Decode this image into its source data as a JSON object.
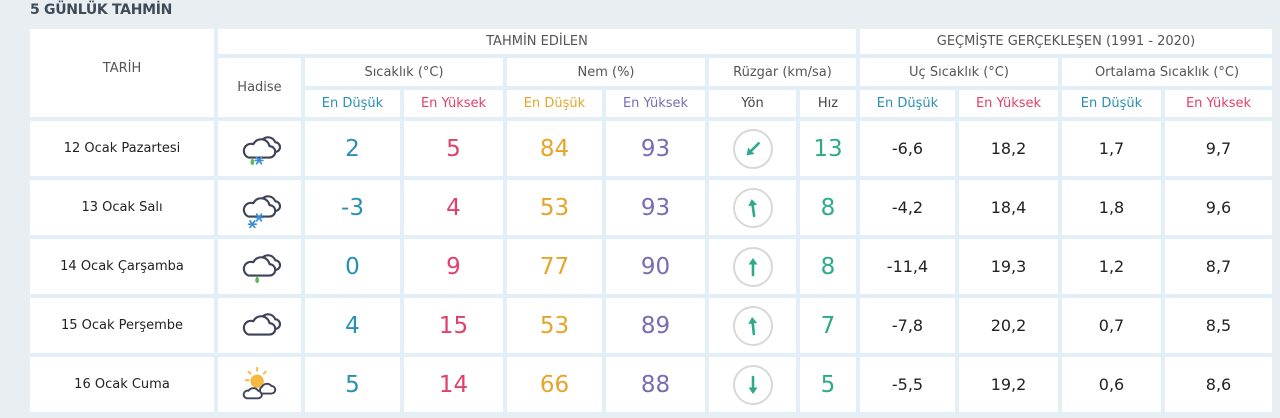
{
  "title": "5 GÜNLÜK TAHMİN",
  "headers": {
    "date": "TARİH",
    "forecast": "TAHMİN EDİLEN",
    "past": "GEÇMİŞTE GERÇEKLEŞEN (1991 - 2020)",
    "event": "Hadise",
    "temperature": "Sıcaklık (°C)",
    "humidity": "Nem (%)",
    "wind": "Rüzgar (km/sa)",
    "extreme_temp": "Uç Sıcaklık (°C)",
    "avg_temp": "Ortalama Sıcaklık (°C)",
    "low": "En Düşük",
    "high": "En Yüksek",
    "direction": "Yön",
    "speed": "Hız"
  },
  "colors": {
    "temp_low": "#2a8fb5",
    "temp_high": "#e0406a",
    "hum_low": "#e6a52a",
    "hum_high": "#7a6bb3",
    "wind": "#2fa98c"
  },
  "rows": [
    {
      "date": "12 Ocak Pazartesi",
      "icon": "cloud-rain-snow-icon",
      "temp_low": "2",
      "temp_high": "5",
      "hum_low": "84",
      "hum_high": "93",
      "wind_dir_deg": 225,
      "wind_speed": "13",
      "ext_low": "-6,6",
      "ext_high": "18,2",
      "avg_low": "1,7",
      "avg_high": "9,7"
    },
    {
      "date": "13 Ocak Salı",
      "icon": "cloud-snow-icon",
      "temp_low": "-3",
      "temp_high": "4",
      "hum_low": "53",
      "hum_high": "93",
      "wind_dir_deg": -8,
      "wind_speed": "8",
      "ext_low": "-4,2",
      "ext_high": "18,4",
      "avg_low": "1,8",
      "avg_high": "9,6"
    },
    {
      "date": "14 Ocak Çarşamba",
      "icon": "cloud-rain-icon",
      "temp_low": "0",
      "temp_high": "9",
      "hum_low": "77",
      "hum_high": "90",
      "wind_dir_deg": 0,
      "wind_speed": "8",
      "ext_low": "-11,4",
      "ext_high": "19,3",
      "avg_low": "1,2",
      "avg_high": "8,7"
    },
    {
      "date": "15 Ocak Perşembe",
      "icon": "cloudy-icon",
      "temp_low": "4",
      "temp_high": "15",
      "hum_low": "53",
      "hum_high": "89",
      "wind_dir_deg": -6,
      "wind_speed": "7",
      "ext_low": "-7,8",
      "ext_high": "20,2",
      "avg_low": "0,7",
      "avg_high": "8,5"
    },
    {
      "date": "16 Ocak Cuma",
      "icon": "partly-cloudy-icon",
      "temp_low": "5",
      "temp_high": "14",
      "hum_low": "66",
      "hum_high": "88",
      "wind_dir_deg": 180,
      "wind_speed": "5",
      "ext_low": "-5,5",
      "ext_high": "19,2",
      "avg_low": "0,6",
      "avg_high": "8,6"
    }
  ]
}
